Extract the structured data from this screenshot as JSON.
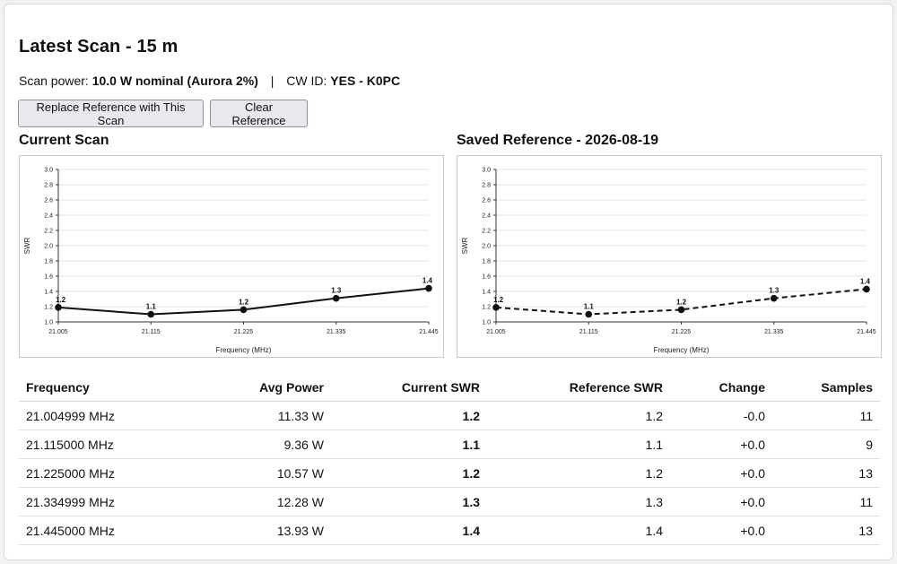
{
  "title": "Latest Scan - 15 m",
  "scan_info": {
    "power_label": "Scan power:",
    "power_value": "10.0 W nominal (Aurora 2%)",
    "separator": "|",
    "cwid_label": "CW ID:",
    "cwid_value": "YES - K0PC"
  },
  "buttons": {
    "replace": "Replace Reference with This Scan",
    "clear": "Clear Reference"
  },
  "current_title": "Current Scan",
  "reference_title": "Saved Reference - 2026-08-19",
  "chart_data": [
    {
      "type": "line",
      "name": "current",
      "x": [
        21.005,
        21.115,
        21.225,
        21.335,
        21.445
      ],
      "x_tick_labels": [
        "21.005",
        "21.115",
        "21.225",
        "21.335",
        "21.445"
      ],
      "values": [
        1.2,
        1.1,
        1.2,
        1.3,
        1.4
      ],
      "y_plot": [
        1.19,
        1.1,
        1.16,
        1.31,
        1.44
      ],
      "data_labels": [
        "1.2",
        "1.1",
        "1.2",
        "1.3",
        "1.4"
      ],
      "xlabel": "Frequency (MHz)",
      "ylabel": "SWR",
      "ylim": [
        1.0,
        3.0
      ],
      "y_ticks": [
        "1.0",
        "1.2",
        "1.4",
        "1.6",
        "1.8",
        "2.0",
        "2.2",
        "2.4",
        "2.6",
        "2.8",
        "3.0"
      ],
      "grid": true,
      "line_style": "solid",
      "color": "#111111"
    },
    {
      "type": "line",
      "name": "reference",
      "x": [
        21.005,
        21.115,
        21.225,
        21.335,
        21.445
      ],
      "x_tick_labels": [
        "21.005",
        "21.115",
        "21.225",
        "21.335",
        "21.445"
      ],
      "values": [
        1.2,
        1.1,
        1.2,
        1.3,
        1.4
      ],
      "y_plot": [
        1.19,
        1.1,
        1.16,
        1.31,
        1.43
      ],
      "data_labels": [
        "1.2",
        "1.1",
        "1.2",
        "1.3",
        "1.4"
      ],
      "xlabel": "Frequency (MHz)",
      "ylabel": "SWR",
      "ylim": [
        1.0,
        3.0
      ],
      "y_ticks": [
        "1.0",
        "1.2",
        "1.4",
        "1.6",
        "1.8",
        "2.0",
        "2.2",
        "2.4",
        "2.6",
        "2.8",
        "3.0"
      ],
      "grid": true,
      "line_style": "dashed",
      "color": "#111111"
    }
  ],
  "table": {
    "headers": [
      "Frequency",
      "Avg Power",
      "Current SWR",
      "Reference SWR",
      "Change",
      "Samples"
    ],
    "rows": [
      [
        "21.004999 MHz",
        "11.33 W",
        "1.2",
        "1.2",
        "-0.0",
        "11"
      ],
      [
        "21.115000 MHz",
        "9.36 W",
        "1.1",
        "1.1",
        "+0.0",
        "9"
      ],
      [
        "21.225000 MHz",
        "10.57 W",
        "1.2",
        "1.2",
        "+0.0",
        "13"
      ],
      [
        "21.334999 MHz",
        "12.28 W",
        "1.3",
        "1.3",
        "+0.0",
        "11"
      ],
      [
        "21.445000 MHz",
        "13.93 W",
        "1.4",
        "1.4",
        "+0.0",
        "13"
      ]
    ]
  }
}
